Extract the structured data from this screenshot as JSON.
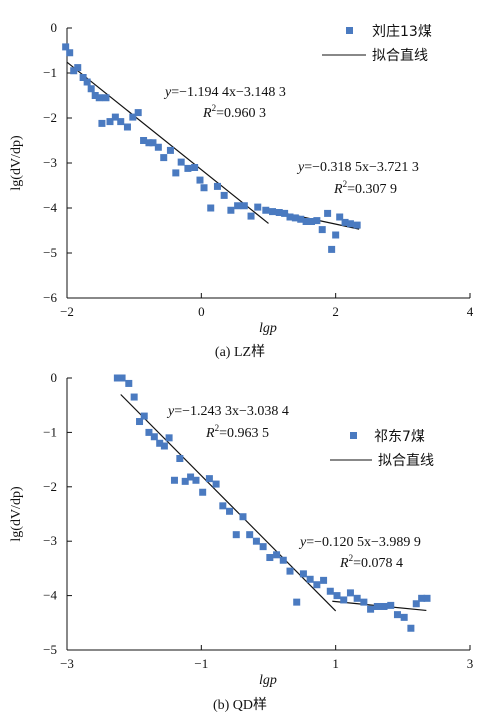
{
  "chart_data": [
    {
      "type": "scatter",
      "panel": "a",
      "caption": "(a) LZ样",
      "xlabel": "lgp",
      "ylabel": "lg(dV/dp)",
      "xlim": [
        -2,
        4
      ],
      "ylim": [
        -6,
        0
      ],
      "xticks": [
        -2,
        0,
        2,
        4
      ],
      "yticks": [
        0,
        -1,
        -2,
        -3,
        -4,
        -5,
        -6
      ],
      "grid": false,
      "legend_position": "top-right",
      "colors": {
        "marker": "#4a7ac0",
        "line": "#111111"
      },
      "series": [
        {
          "name": "刘庄13煤",
          "x": [
            -2.02,
            -1.96,
            -1.9,
            -1.84,
            -1.76,
            -1.7,
            -1.64,
            -1.58,
            -1.52,
            -1.48,
            -1.42,
            -1.36,
            -1.28,
            -1.2,
            -1.1,
            -1.02,
            -0.94,
            -0.86,
            -0.78,
            -0.72,
            -0.64,
            -0.56,
            -0.46,
            -0.38,
            -0.3,
            -0.2,
            -0.1,
            -0.02,
            0.04,
            0.14,
            0.24,
            0.34,
            0.44,
            0.54,
            0.64,
            0.74,
            0.84,
            0.96,
            1.06,
            1.16,
            1.24,
            1.32,
            1.4,
            1.48,
            1.56,
            1.64,
            1.72,
            1.8,
            1.88,
            1.94,
            2.0,
            2.06,
            2.14,
            2.22,
            2.32
          ],
          "y": [
            -0.42,
            -0.55,
            -0.95,
            -0.88,
            -1.1,
            -1.2,
            -1.35,
            -1.5,
            -1.55,
            -2.12,
            -1.55,
            -2.08,
            -1.98,
            -2.08,
            -2.2,
            -1.98,
            -1.88,
            -2.5,
            -2.55,
            -2.55,
            -2.65,
            -2.88,
            -2.72,
            -3.22,
            -2.98,
            -3.12,
            -3.1,
            -3.38,
            -3.55,
            -4.0,
            -3.52,
            -3.72,
            -4.05,
            -3.95,
            -3.95,
            -4.18,
            -3.98,
            -4.05,
            -4.08,
            -4.1,
            -4.12,
            -4.2,
            -4.22,
            -4.25,
            -4.3,
            -4.3,
            -4.28,
            -4.48,
            -4.12,
            -4.92,
            -4.6,
            -4.2,
            -4.32,
            -4.35,
            -4.38
          ]
        },
        {
          "name": "拟合直线",
          "fit": [
            {
              "x0": -2,
              "x1": 1,
              "slope": -1.1944,
              "intercept": -3.1483
            },
            {
              "x0": 1.05,
              "x1": 2.35,
              "slope": -0.3185,
              "intercept": -3.7213
            }
          ]
        }
      ],
      "annotations": [
        {
          "equation": "y=−1.194 4x−3.148 3",
          "r2": "=0.960 3"
        },
        {
          "equation": "y=−0.318 5x−3.721 3",
          "r2": "=0.307 9"
        }
      ]
    },
    {
      "type": "scatter",
      "panel": "b",
      "caption": "(b) QD样",
      "xlabel": "lgp",
      "ylabel": "lg(dV/dp)",
      "xlim": [
        -3,
        3
      ],
      "ylim": [
        -5,
        0
      ],
      "xticks": [
        -3,
        -1,
        1,
        3
      ],
      "yticks": [
        0,
        -1,
        -2,
        -3,
        -4,
        -5
      ],
      "grid": false,
      "legend_position": "right",
      "colors": {
        "marker": "#4a7ac0",
        "line": "#111111"
      },
      "series": [
        {
          "name": "祁东7煤",
          "x": [
            -2.25,
            -2.18,
            -2.08,
            -2.0,
            -1.92,
            -1.85,
            -1.78,
            -1.7,
            -1.62,
            -1.55,
            -1.48,
            -1.4,
            -1.32,
            -1.24,
            -1.16,
            -1.08,
            -0.98,
            -0.88,
            -0.78,
            -0.68,
            -0.58,
            -0.48,
            -0.38,
            -0.28,
            -0.18,
            -0.08,
            0.02,
            0.12,
            0.22,
            0.32,
            0.42,
            0.52,
            0.62,
            0.72,
            0.82,
            0.92,
            1.02,
            1.12,
            1.22,
            1.32,
            1.42,
            1.52,
            1.62,
            1.72,
            1.82,
            1.92,
            2.02,
            2.12,
            2.2,
            2.28,
            2.36
          ],
          "y": [
            0.0,
            0.0,
            -0.1,
            -0.35,
            -0.8,
            -0.7,
            -1.0,
            -1.08,
            -1.2,
            -1.25,
            -1.1,
            -1.88,
            -1.48,
            -1.9,
            -1.82,
            -1.88,
            -2.1,
            -1.85,
            -1.95,
            -2.35,
            -2.45,
            -2.88,
            -2.55,
            -2.88,
            -3.0,
            -3.1,
            -3.3,
            -3.25,
            -3.35,
            -3.55,
            -4.12,
            -3.6,
            -3.7,
            -3.8,
            -3.72,
            -3.92,
            -4.0,
            -4.08,
            -3.95,
            -4.05,
            -4.12,
            -4.25,
            -4.2,
            -4.2,
            -4.18,
            -4.35,
            -4.4,
            -4.6,
            -4.15,
            -4.05,
            -4.05
          ]
        },
        {
          "name": "拟合直线",
          "fit": [
            {
              "x0": -2.2,
              "x1": 1.0,
              "slope": -1.2433,
              "intercept": -3.0384
            },
            {
              "x0": 0.95,
              "x1": 2.35,
              "slope": -0.1205,
              "intercept": -3.9899
            }
          ]
        }
      ],
      "annotations": [
        {
          "equation": "y=−1.243 3x−3.038 4",
          "r2": "=0.963 5"
        },
        {
          "equation": "y=−0.120 5x−3.989 9",
          "r2": "=0.078 4"
        }
      ]
    }
  ]
}
